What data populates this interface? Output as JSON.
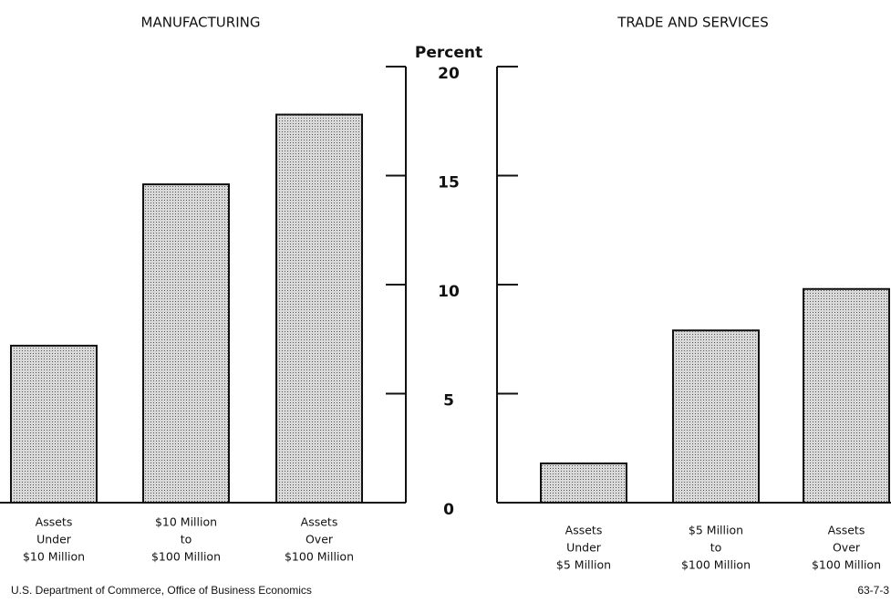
{
  "chart_data": [
    {
      "type": "bar",
      "title": "MANUFACTURING",
      "ylabel": "Percent",
      "categories": [
        [
          "Assets",
          "Under",
          "$10 Million"
        ],
        [
          "$10 Million",
          "to",
          "$100 Million"
        ],
        [
          "Assets",
          "Over",
          "$100 Million"
        ]
      ],
      "values": [
        7.2,
        14.6,
        17.8
      ],
      "color": "#d9d9d9",
      "ylim": [
        0,
        20
      ],
      "yticks": [
        0,
        5,
        10,
        15,
        20
      ]
    },
    {
      "type": "bar",
      "title": "TRADE AND SERVICES",
      "categories": [
        [
          "Assets",
          "Under",
          "$5 Million"
        ],
        [
          "$5 Million",
          "to",
          "$100 Million"
        ],
        [
          "Assets",
          "Over",
          "$100 Million"
        ]
      ],
      "values": [
        1.8,
        7.9,
        9.8
      ],
      "color": "#d9d9d9",
      "ylim": [
        0,
        20
      ],
      "yticks": [
        0,
        5,
        10,
        15,
        20
      ]
    }
  ],
  "source": "U.S. Department of Commerce, Office of Business Economics",
  "figure_number": "63-7-3"
}
